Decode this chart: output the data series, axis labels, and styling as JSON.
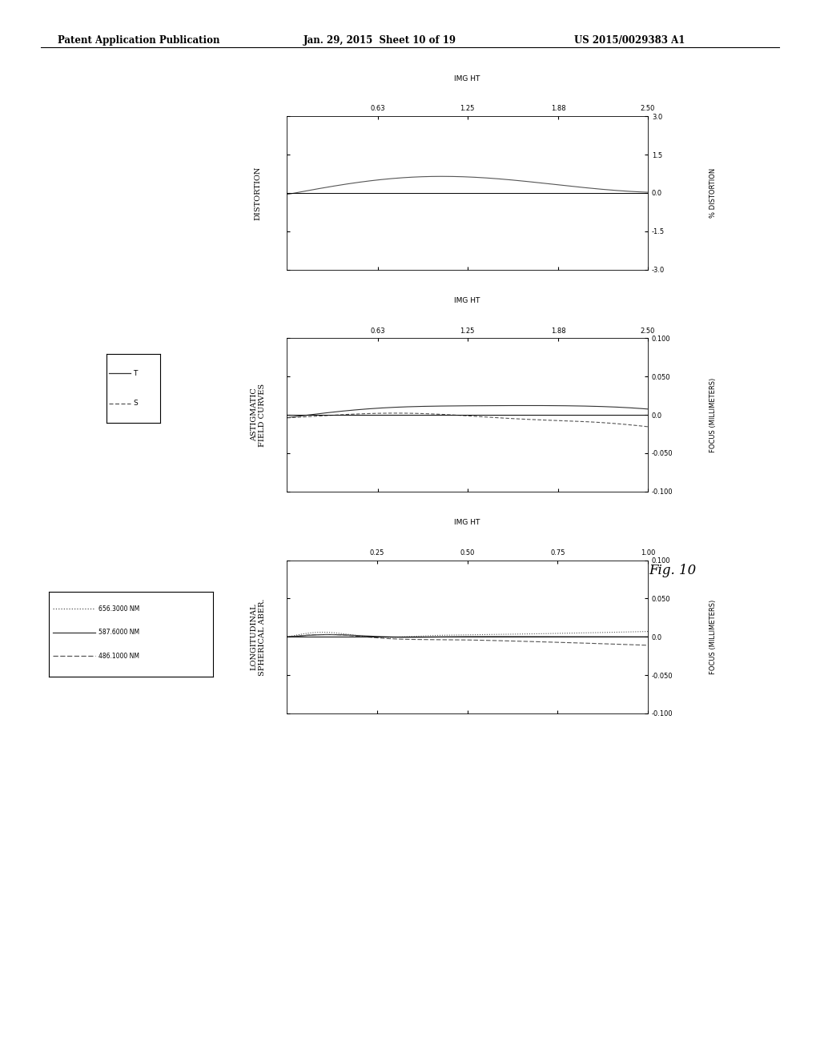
{
  "header_left": "Patent Application Publication",
  "header_mid": "Jan. 29, 2015  Sheet 10 of 19",
  "header_right": "US 2015/0029383 A1",
  "fig_label": "Fig. 10",
  "background_color": "#ffffff",
  "plots": [
    {
      "title": "LONGITUDINAL\nSPHERICAL ABER.",
      "ylabel_right": "FOCUS (MILLIMETERS)",
      "xlabel_top": "IMG HT",
      "xlim": [
        0,
        1.0
      ],
      "ylim": [
        -0.1,
        0.1
      ],
      "xticks": [
        0.25,
        0.5,
        0.75,
        1.0
      ],
      "xtick_labels": [
        "0.25",
        "0.50",
        "0.75",
        "1.00"
      ],
      "yticks": [
        -0.1,
        -0.05,
        0.0,
        0.05,
        0.1
      ],
      "ytick_labels": [
        "-0.100",
        "-0.050",
        "0.0",
        "0.050",
        "0.100"
      ],
      "legend_entries": [
        "656.3000 NM",
        "587.6000 NM",
        "486.1000 NM"
      ],
      "legend_styles": [
        "dotted",
        "solid",
        "dashdot"
      ],
      "legend_colors": [
        "#555555",
        "#333333",
        "#555555"
      ]
    },
    {
      "title": "ASTIGMATIC\nFIELD CURVES",
      "ylabel_right": "FOCUS (MILLIMETERS)",
      "xlabel_top": "IMG HT",
      "xlim": [
        0,
        2.5
      ],
      "ylim": [
        -0.1,
        0.1
      ],
      "xticks": [
        0.63,
        1.25,
        1.88,
        2.5
      ],
      "xtick_labels": [
        "0.63",
        "1.25",
        "1.88",
        "2.50"
      ],
      "yticks": [
        -0.1,
        -0.05,
        0.0,
        0.05,
        0.1
      ],
      "ytick_labels": [
        "-0.100",
        "-0.050",
        "0.0",
        "0.050",
        "0.100"
      ],
      "legend_entries": [
        "T",
        "S"
      ],
      "legend_styles": [
        "solid",
        "dashed"
      ],
      "legend_colors": [
        "#333333",
        "#555555"
      ]
    },
    {
      "title": "DISTORTION",
      "ylabel_right": "% DISTORTION",
      "xlabel_top": "IMG HT",
      "xlim": [
        0,
        2.5
      ],
      "ylim": [
        -3.0,
        3.0
      ],
      "xticks": [
        0.63,
        1.25,
        1.88,
        2.5
      ],
      "xtick_labels": [
        "0.63",
        "1.25",
        "1.88",
        "2.50"
      ],
      "yticks": [
        -3.0,
        -1.5,
        0.0,
        1.5,
        3.0
      ],
      "ytick_labels": [
        "-3.0",
        "-1.5",
        "0.0",
        "1.5",
        "3.0"
      ]
    }
  ]
}
